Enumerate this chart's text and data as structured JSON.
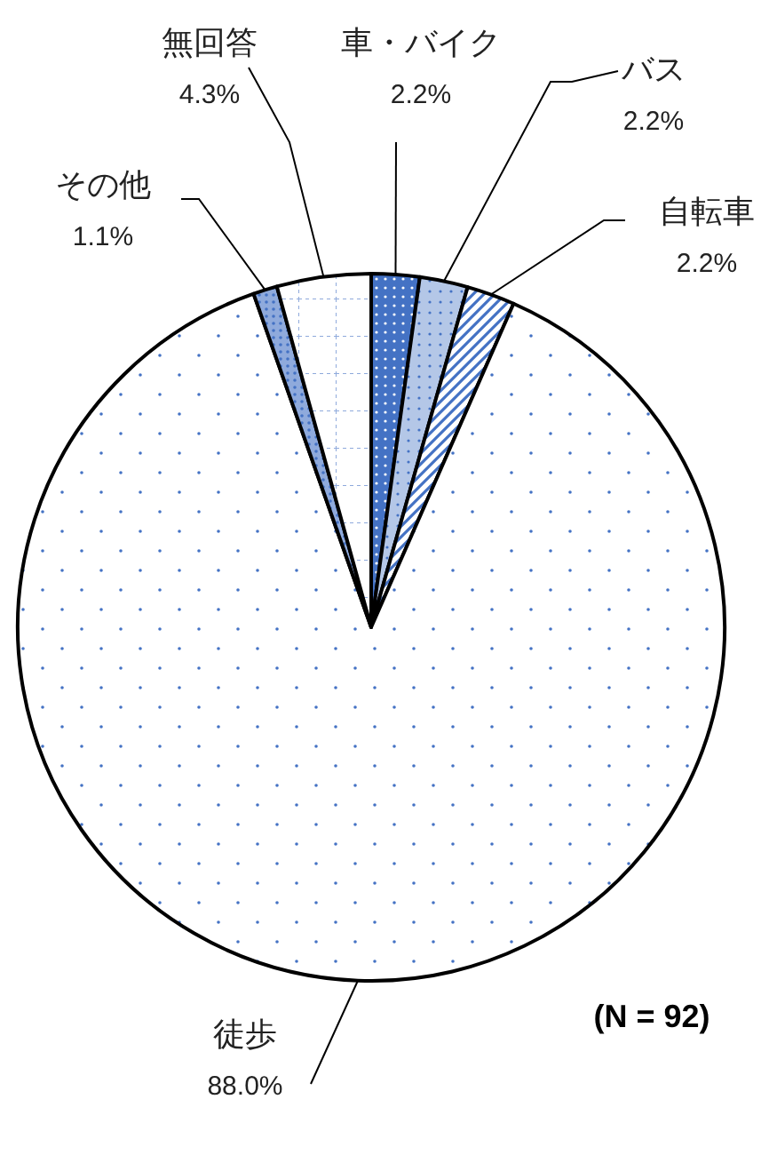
{
  "chart_data": {
    "type": "pie",
    "categories": [
      "車・バイク",
      "バス",
      "自転車",
      "徒歩",
      "その他",
      "無回答"
    ],
    "values": [
      2.2,
      2.2,
      2.2,
      88.0,
      1.1,
      4.3
    ],
    "value_labels": [
      "2.2%",
      "2.2%",
      "2.2%",
      "88.0%",
      "1.1%",
      "4.3%"
    ],
    "colors": [
      "#4472c4",
      "#b4c7e7",
      "#8faadc",
      "#ffffff",
      "#8faadc",
      "#ffffff"
    ],
    "annotations": [
      "(N = 92)"
    ]
  }
}
